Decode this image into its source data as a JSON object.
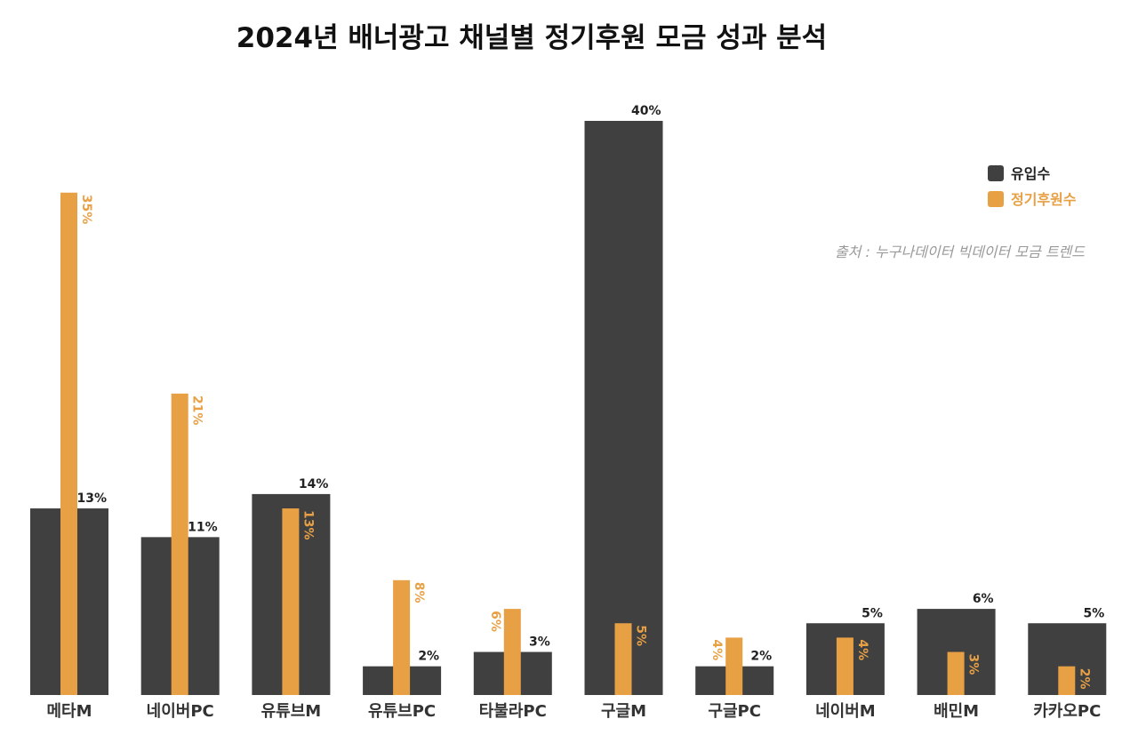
{
  "chart_data": {
    "type": "bar",
    "title": "2024년 배너광고 채널별 정기후원 모금 성과 분석",
    "source": "출처 : 누구나데이터 빅데이터 모금 트렌드",
    "categories": [
      "메타M",
      "네이버PC",
      "유튜브M",
      "유튜브PC",
      "타불라PC",
      "구글M",
      "구글PC",
      "네이버M",
      "배민M",
      "카카오PC"
    ],
    "series": [
      {
        "name": "유입수",
        "color": "#404040",
        "values": [
          13,
          11,
          14,
          2,
          3,
          40,
          2,
          5,
          6,
          5
        ],
        "labels": [
          "13%",
          "11%",
          "14%",
          "2%",
          "3%",
          "40%",
          "2%",
          "5%",
          "6%",
          "5%"
        ]
      },
      {
        "name": "정기후원수",
        "color": "#e8a045",
        "values": [
          35,
          21,
          13,
          8,
          6,
          5,
          4,
          4,
          3,
          2
        ],
        "labels": [
          "35%",
          "21%",
          "13%",
          "8%",
          "6%",
          "5%",
          "4%",
          "4%",
          "3%",
          "2%"
        ]
      }
    ],
    "ylim": [
      0,
      40
    ],
    "grid": false,
    "legend_position": "top-right"
  }
}
